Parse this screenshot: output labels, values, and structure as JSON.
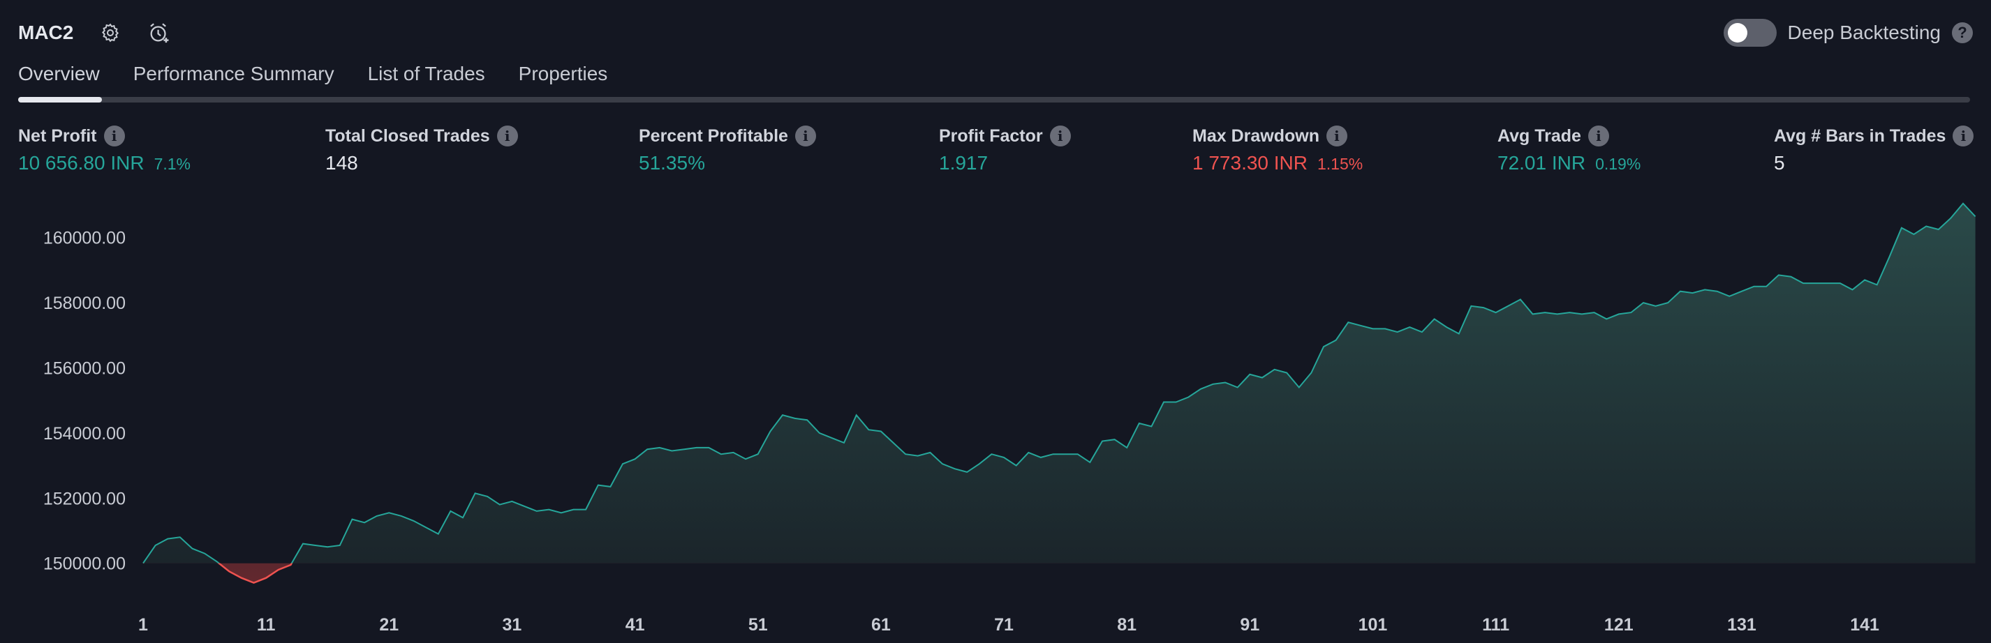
{
  "header": {
    "strategy_name": "MAC2",
    "settings_icon": "gear-icon",
    "alert_icon": "alarm-clock-plus-icon",
    "deep_backtesting_label": "Deep Backtesting",
    "help_icon": "question-icon"
  },
  "tabs": [
    {
      "label": "Overview",
      "active": true
    },
    {
      "label": "Performance Summary",
      "active": false
    },
    {
      "label": "List of Trades",
      "active": false
    },
    {
      "label": "Properties",
      "active": false
    }
  ],
  "metrics": {
    "net_profit": {
      "title": "Net Profit",
      "value": "10 656.80 INR",
      "pct": "7.1%"
    },
    "total_closed_trades": {
      "title": "Total Closed Trades",
      "value": "148"
    },
    "percent_profitable": {
      "title": "Percent Profitable",
      "value": "51.35%"
    },
    "profit_factor": {
      "title": "Profit Factor",
      "value": "1.917"
    },
    "max_drawdown": {
      "title": "Max Drawdown",
      "value": "1 773.30 INR",
      "pct": "1.15%"
    },
    "avg_trade": {
      "title": "Avg Trade",
      "value": "72.01 INR",
      "pct": "0.19%"
    },
    "avg_bars_in_trades": {
      "title": "Avg # Bars in Trades",
      "value": "5"
    }
  },
  "colors": {
    "up": "#26a69a",
    "down": "#ef5350",
    "area_top": "#2a4a49",
    "area_bottom": "#1a2329"
  },
  "chart_data": {
    "type": "area",
    "xlabel": "",
    "ylabel": "",
    "baseline": 150000,
    "ylim": [
      149200,
      161300
    ],
    "xlim": [
      1,
      149
    ],
    "y_ticks": [
      "150000.00",
      "152000.00",
      "154000.00",
      "156000.00",
      "158000.00",
      "160000.00"
    ],
    "y_tick_values": [
      150000,
      152000,
      154000,
      156000,
      158000,
      160000
    ],
    "x_ticks": [
      1,
      11,
      21,
      31,
      41,
      51,
      61,
      71,
      81,
      91,
      101,
      111,
      121,
      131,
      141
    ],
    "points": [
      [
        1,
        150000
      ],
      [
        2,
        150550
      ],
      [
        3,
        150750
      ],
      [
        4,
        150800
      ],
      [
        5,
        150450
      ],
      [
        6,
        150300
      ],
      [
        7,
        150050
      ],
      [
        8,
        149750
      ],
      [
        9,
        149550
      ],
      [
        10,
        149400
      ],
      [
        11,
        149550
      ],
      [
        12,
        149800
      ],
      [
        13,
        149950
      ],
      [
        14,
        150600
      ],
      [
        15,
        150550
      ],
      [
        16,
        150500
      ],
      [
        17,
        150550
      ],
      [
        18,
        151350
      ],
      [
        19,
        151250
      ],
      [
        20,
        151450
      ],
      [
        21,
        151550
      ],
      [
        22,
        151450
      ],
      [
        23,
        151300
      ],
      [
        24,
        151100
      ],
      [
        25,
        150900
      ],
      [
        26,
        151600
      ],
      [
        27,
        151400
      ],
      [
        28,
        152150
      ],
      [
        29,
        152050
      ],
      [
        30,
        151800
      ],
      [
        31,
        151900
      ],
      [
        32,
        151750
      ],
      [
        33,
        151600
      ],
      [
        34,
        151650
      ],
      [
        35,
        151550
      ],
      [
        36,
        151650
      ],
      [
        37,
        151650
      ],
      [
        38,
        152400
      ],
      [
        39,
        152350
      ],
      [
        40,
        153050
      ],
      [
        41,
        153200
      ],
      [
        42,
        153500
      ],
      [
        43,
        153550
      ],
      [
        44,
        153450
      ],
      [
        45,
        153500
      ],
      [
        46,
        153550
      ],
      [
        47,
        153550
      ],
      [
        48,
        153350
      ],
      [
        49,
        153400
      ],
      [
        50,
        153200
      ],
      [
        51,
        153350
      ],
      [
        52,
        154050
      ],
      [
        53,
        154550
      ],
      [
        54,
        154450
      ],
      [
        55,
        154400
      ],
      [
        56,
        154000
      ],
      [
        57,
        153850
      ],
      [
        58,
        153700
      ],
      [
        59,
        154550
      ],
      [
        60,
        154100
      ],
      [
        61,
        154050
      ],
      [
        62,
        153700
      ],
      [
        63,
        153350
      ],
      [
        64,
        153300
      ],
      [
        65,
        153400
      ],
      [
        66,
        153050
      ],
      [
        67,
        152900
      ],
      [
        68,
        152800
      ],
      [
        69,
        153050
      ],
      [
        70,
        153350
      ],
      [
        71,
        153250
      ],
      [
        72,
        153000
      ],
      [
        73,
        153400
      ],
      [
        74,
        153250
      ],
      [
        75,
        153350
      ],
      [
        76,
        153350
      ],
      [
        77,
        153350
      ],
      [
        78,
        153100
      ],
      [
        79,
        153750
      ],
      [
        80,
        153800
      ],
      [
        81,
        153550
      ],
      [
        82,
        154300
      ],
      [
        83,
        154200
      ],
      [
        84,
        154950
      ],
      [
        85,
        154950
      ],
      [
        86,
        155100
      ],
      [
        87,
        155350
      ],
      [
        88,
        155500
      ],
      [
        89,
        155550
      ],
      [
        90,
        155400
      ],
      [
        91,
        155800
      ],
      [
        92,
        155700
      ],
      [
        93,
        155950
      ],
      [
        94,
        155850
      ],
      [
        95,
        155400
      ],
      [
        96,
        155850
      ],
      [
        97,
        156650
      ],
      [
        98,
        156850
      ],
      [
        99,
        157400
      ],
      [
        100,
        157300
      ],
      [
        101,
        157200
      ],
      [
        102,
        157200
      ],
      [
        103,
        157100
      ],
      [
        104,
        157250
      ],
      [
        105,
        157100
      ],
      [
        106,
        157500
      ],
      [
        107,
        157250
      ],
      [
        108,
        157050
      ],
      [
        109,
        157900
      ],
      [
        110,
        157850
      ],
      [
        111,
        157700
      ],
      [
        112,
        157900
      ],
      [
        113,
        158100
      ],
      [
        114,
        157650
      ],
      [
        115,
        157700
      ],
      [
        116,
        157650
      ],
      [
        117,
        157700
      ],
      [
        118,
        157650
      ],
      [
        119,
        157700
      ],
      [
        120,
        157500
      ],
      [
        121,
        157650
      ],
      [
        122,
        157700
      ],
      [
        123,
        158000
      ],
      [
        124,
        157900
      ],
      [
        125,
        158000
      ],
      [
        126,
        158350
      ],
      [
        127,
        158300
      ],
      [
        128,
        158400
      ],
      [
        129,
        158350
      ],
      [
        130,
        158200
      ],
      [
        131,
        158350
      ],
      [
        132,
        158500
      ],
      [
        133,
        158500
      ],
      [
        134,
        158850
      ],
      [
        135,
        158800
      ],
      [
        136,
        158600
      ],
      [
        137,
        158600
      ],
      [
        138,
        158600
      ],
      [
        139,
        158600
      ],
      [
        140,
        158400
      ],
      [
        141,
        158700
      ],
      [
        142,
        158550
      ],
      [
        143,
        159400
      ],
      [
        144,
        160300
      ],
      [
        145,
        160100
      ],
      [
        146,
        160350
      ],
      [
        147,
        160250
      ],
      [
        148,
        160600
      ],
      [
        149,
        161050
      ],
      [
        150,
        160650
      ]
    ]
  }
}
